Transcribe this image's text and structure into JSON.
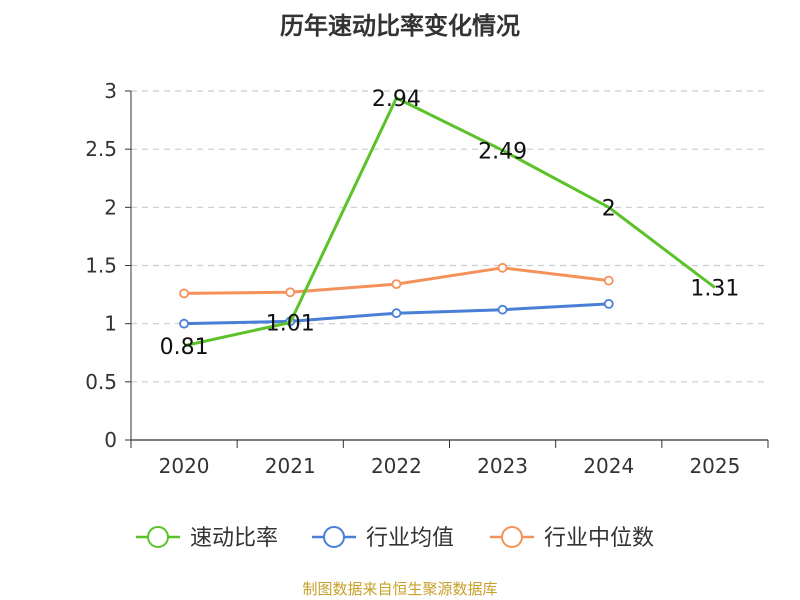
{
  "chart_data": {
    "type": "line",
    "title": "历年速动比率变化情况",
    "categories": [
      "2020",
      "2021",
      "2022",
      "2023",
      "2024",
      "2025"
    ],
    "ylim": [
      0,
      3
    ],
    "yticks": [
      "0",
      "0.5",
      "1",
      "1.5",
      "2",
      "2.5",
      "3"
    ],
    "grid": true,
    "legend_position": "bottom",
    "series": [
      {
        "name": "速动比率",
        "color": "#5cc22a",
        "values": [
          0.81,
          1.01,
          2.94,
          2.49,
          2,
          1.31
        ],
        "labels": [
          "0.81",
          "1.01",
          "2.94",
          "2.49",
          "2",
          "1.31"
        ]
      },
      {
        "name": "行业均值",
        "color": "#4a7fd8",
        "values": [
          1.0,
          1.02,
          1.09,
          1.12,
          1.17,
          null
        ]
      },
      {
        "name": "行业中位数",
        "color": "#f5925a",
        "values": [
          1.26,
          1.27,
          1.34,
          1.48,
          1.37,
          null
        ]
      }
    ]
  },
  "source": "制图数据来自恒生聚源数据库"
}
